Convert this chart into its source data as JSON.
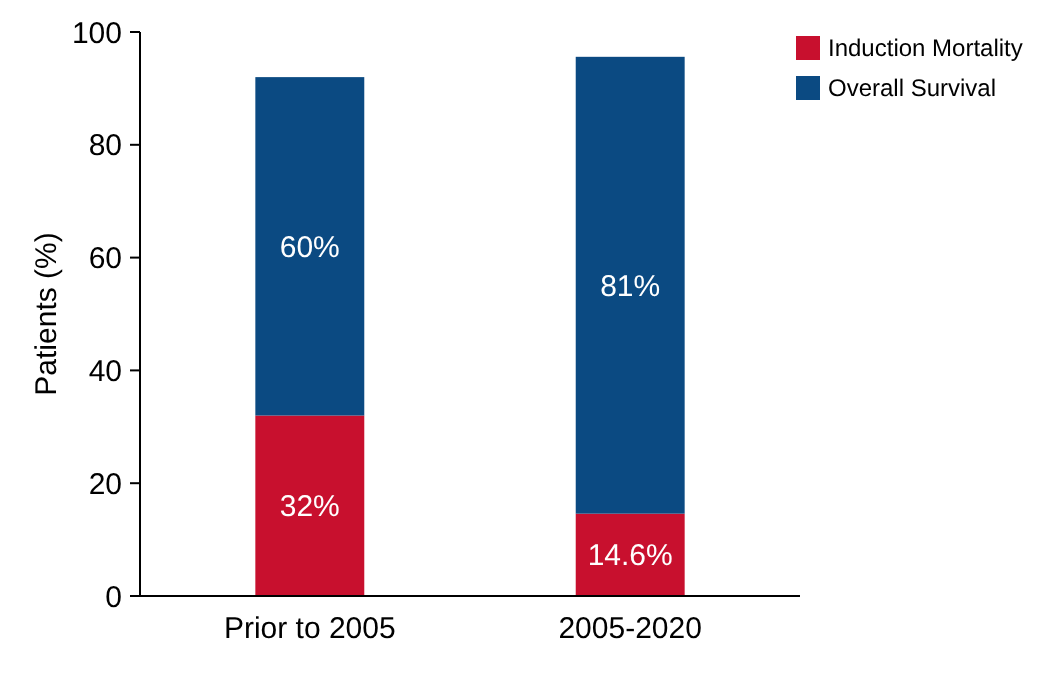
{
  "chart_data": {
    "type": "bar",
    "stacked": true,
    "ylabel": "Patients (%)",
    "categories": [
      "Prior to 2005",
      "2005-2020"
    ],
    "series": [
      {
        "name": "Induction Mortality",
        "color": "#c8102e",
        "values": [
          32,
          14.6
        ],
        "value_labels": [
          "32%",
          "14.6%"
        ]
      },
      {
        "name": "Overall Survival",
        "color": "#0b4a82",
        "values": [
          60,
          81
        ],
        "value_labels": [
          "60%",
          "81%"
        ]
      }
    ],
    "ylim": [
      0,
      100
    ],
    "yticks": [
      0,
      20,
      40,
      60,
      80,
      100
    ],
    "legend": "top right",
    "grid": false
  }
}
